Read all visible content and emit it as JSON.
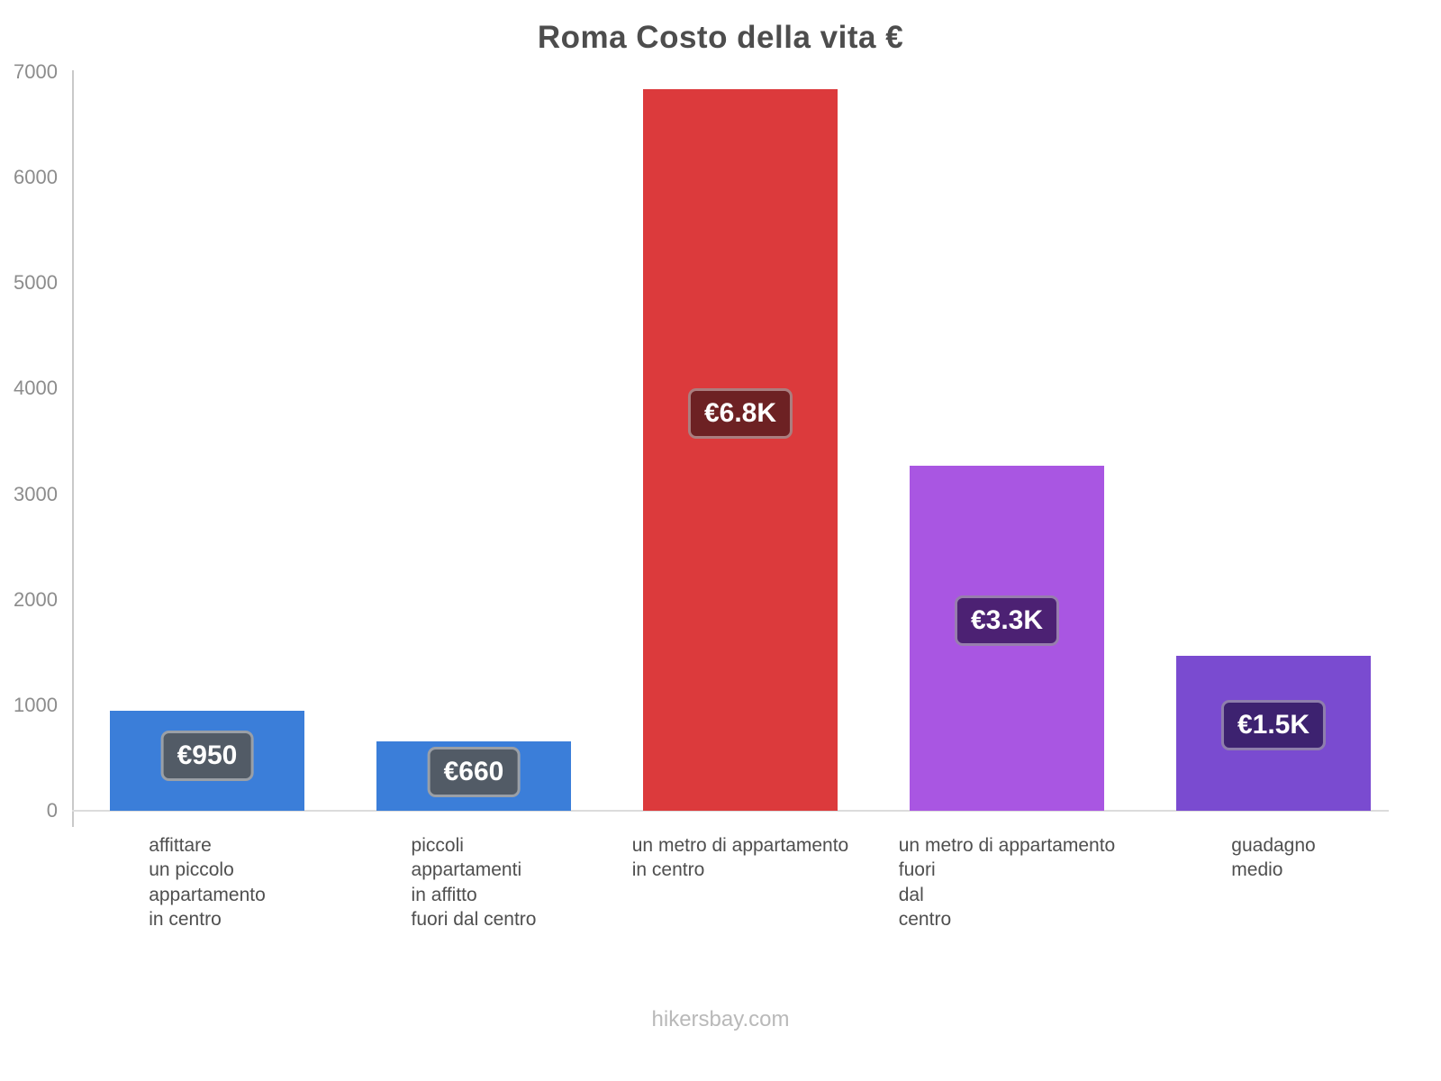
{
  "title": "Roma Costo della vita €",
  "footer": {
    "text": "hikersbay.com"
  },
  "chart_data": {
    "type": "bar",
    "title": "Roma Costo della vita €",
    "categories": [
      "affittare\nun piccolo\nappartamento\nin centro",
      "piccoli\nappartamenti\nin affitto\nfuori dal centro",
      "un metro di appartamento\nin centro",
      "un metro di appartamento\nfuori\ndal\ncentro",
      "guadagno\nmedio"
    ],
    "values": [
      950,
      660,
      6840,
      3270,
      1470
    ],
    "data_labels": [
      "€950",
      "€660",
      "€6.8K",
      "€3.3K",
      "€1.5K"
    ],
    "bar_colors": [
      "#3b7ed9",
      "#3b7ed9",
      "#dc3a3c",
      "#a956e2",
      "#7a4bd0"
    ],
    "label_bg_colors": [
      "#525b66",
      "#525b66",
      "#6d2123",
      "#4c2173",
      "#3d2270"
    ],
    "xlabel": "",
    "ylabel": "",
    "ylim": [
      0,
      7000
    ],
    "ytick_step": 1000,
    "grid": false,
    "legend": "none",
    "currency": "€",
    "watermark": "hikersbay.com"
  }
}
